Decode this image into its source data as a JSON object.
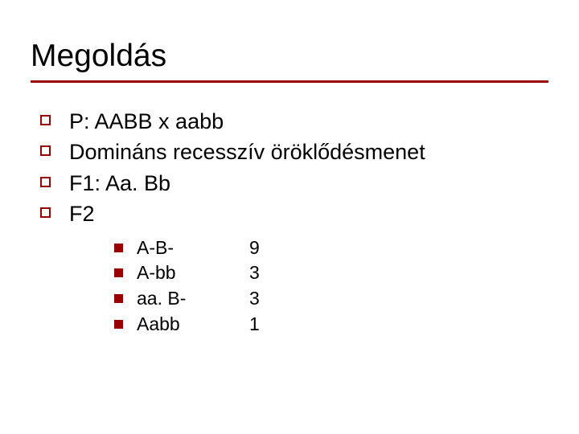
{
  "accent_color": "#990000",
  "title_fontsize": 39,
  "body_fontsize": 27,
  "sub_fontsize": 23,
  "text_color": "#000000",
  "background_color": "#ffffff",
  "title": "Megoldás",
  "bullets": {
    "b0": "P: AABB x aabb",
    "b1": "Domináns recesszív öröklődésmenet",
    "b2": "F1: Aa. Bb",
    "b3": "F2"
  },
  "table": {
    "rows": [
      {
        "genotype": "A-B-",
        "ratio": "9"
      },
      {
        "genotype": "A-bb",
        "ratio": "3"
      },
      {
        "genotype": "aa. B-",
        "ratio": "3"
      },
      {
        "genotype": "Aabb",
        "ratio": "1"
      }
    ]
  }
}
